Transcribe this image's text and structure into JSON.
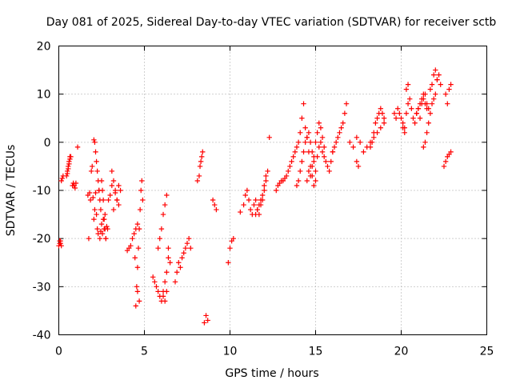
{
  "chart_data": {
    "type": "scatter",
    "title": "Day 081 of 2025, Sidereal Day-to-day VTEC variation (SDTVAR) for receiver sctb",
    "xlabel": "GPS time / hours",
    "ylabel": "SDTVAR / TECUs",
    "xlim": [
      0,
      25
    ],
    "ylim": [
      -40,
      20
    ],
    "xticks": [
      "0",
      "5",
      "10",
      "15",
      "20",
      "25"
    ],
    "yticks": [
      "-40",
      "-30",
      "-20",
      "-10",
      "0",
      "10",
      "20"
    ],
    "xtick_values": [
      0,
      5,
      10,
      15,
      20,
      25
    ],
    "ytick_values": [
      -40,
      -30,
      -20,
      -10,
      0,
      10,
      20
    ],
    "grid": true,
    "marker": "+",
    "color": "#ff0000",
    "series": [
      {
        "name": "SDTVAR",
        "x": [
          0.0,
          0.05,
          0.1,
          0.15,
          0.2,
          0.25,
          0.05,
          0.1,
          0.15,
          0.45,
          0.5,
          0.55,
          0.6,
          0.65,
          0.5,
          0.55,
          0.6,
          0.65,
          0.7,
          0.8,
          0.85,
          0.9,
          0.95,
          1.0,
          1.1,
          1.7,
          1.75,
          1.8,
          1.85,
          1.9,
          1.95,
          2.0,
          2.05,
          2.1,
          2.15,
          2.2,
          2.25,
          2.3,
          2.35,
          2.4,
          2.45,
          2.5,
          2.55,
          2.6,
          2.65,
          2.7,
          2.75,
          2.8,
          2.85,
          2.9,
          2.05,
          2.1,
          2.15,
          2.2,
          2.25,
          2.3,
          2.35,
          2.4,
          2.45,
          2.5,
          2.55,
          2.6,
          2.65,
          2.7,
          2.75,
          3.0,
          3.1,
          3.2,
          3.3,
          3.4,
          3.5,
          3.6,
          3.1,
          3.2,
          3.3,
          3.4,
          3.5,
          4.0,
          4.1,
          4.2,
          4.3,
          4.4,
          4.5,
          4.6,
          4.45,
          4.5,
          4.55,
          4.6,
          4.65,
          4.7,
          4.75,
          4.8,
          4.85,
          4.9,
          4.6,
          4.7,
          5.5,
          5.6,
          5.7,
          5.8,
          5.9,
          6.0,
          6.1,
          6.2,
          6.3,
          6.4,
          5.8,
          5.9,
          6.0,
          6.1,
          6.2,
          6.3,
          6.4,
          6.5,
          6.1,
          6.2,
          6.3,
          6.8,
          6.9,
          7.0,
          7.1,
          7.2,
          7.3,
          7.4,
          7.5,
          7.6,
          7.7,
          8.1,
          8.2,
          8.25,
          8.3,
          8.35,
          8.4,
          8.5,
          8.6,
          8.7,
          9.0,
          9.1,
          9.2,
          9.9,
          10.0,
          10.1,
          10.2,
          10.6,
          10.8,
          10.9,
          11.0,
          11.1,
          11.2,
          11.3,
          11.4,
          11.5,
          11.6,
          11.7,
          11.8,
          11.9,
          12.0,
          12.1,
          12.2,
          12.3,
          11.5,
          11.6,
          11.7,
          11.8,
          11.9,
          12.0,
          12.1,
          12.7,
          12.8,
          12.9,
          13.0,
          13.1,
          13.2,
          13.3,
          13.4,
          13.5,
          13.6,
          13.7,
          13.8,
          13.9,
          14.0,
          14.1,
          14.2,
          14.3,
          14.4,
          14.5,
          14.6,
          14.7,
          14.8,
          14.9,
          15.0,
          13.9,
          14.0,
          14.1,
          14.2,
          14.3,
          14.4,
          14.5,
          14.6,
          14.7,
          14.8,
          14.9,
          15.0,
          15.1,
          15.2,
          15.3,
          15.4,
          15.5,
          15.6,
          15.7,
          15.8,
          15.9,
          16.0,
          14.5,
          14.6,
          14.7,
          14.8,
          14.9,
          15.0,
          15.1,
          15.2,
          15.3,
          15.4,
          15.5,
          16.0,
          16.1,
          16.2,
          16.3,
          16.4,
          16.5,
          16.6,
          16.7,
          16.8,
          17.0,
          17.2,
          17.4,
          17.6,
          17.8,
          18.0,
          18.2,
          18.4,
          18.6,
          18.8,
          19.0,
          17.4,
          17.5,
          18.2,
          18.3,
          18.4,
          18.5,
          18.6,
          18.7,
          18.8,
          18.9,
          19.0,
          19.6,
          19.7,
          19.8,
          19.9,
          20.0,
          20.1,
          20.2,
          20.3,
          20.4,
          20.5,
          20.6,
          20.7,
          20.8,
          20.9,
          21.0,
          21.1,
          21.2,
          21.3,
          21.4,
          21.5,
          20.1,
          20.2,
          20.3,
          20.4,
          20.9,
          21.0,
          21.1,
          21.2,
          21.3,
          21.4,
          21.5,
          21.6,
          21.7,
          21.8,
          21.9,
          22.0,
          22.1,
          21.3,
          21.4,
          21.5,
          21.6,
          21.7,
          21.8,
          21.9,
          22.0,
          22.1,
          22.2,
          22.3,
          22.5,
          22.6,
          22.7,
          22.8,
          22.9,
          22.6,
          22.7,
          22.8,
          22.9
        ],
        "y": [
          -21.5,
          -21,
          -20.5,
          -8,
          -7.5,
          -7,
          -20.5,
          -21,
          -21.5,
          -7,
          -6,
          -5,
          -4,
          -3,
          -6.5,
          -5.5,
          -4.5,
          -3.5,
          -3,
          -9,
          -8.5,
          -9,
          -9.5,
          -8.5,
          -1,
          -11,
          -20,
          -10.5,
          -12,
          -6,
          -5,
          -11.5,
          -16,
          -14,
          -10.5,
          -15,
          -18,
          -19,
          -10,
          -20,
          -18.5,
          -17,
          -19,
          -16,
          -18,
          -15,
          -20,
          -17.5,
          -18,
          -12,
          0.5,
          0,
          -2,
          -4,
          -6,
          -8,
          -10,
          -12,
          -14,
          -8,
          -10,
          -12,
          -16,
          -18,
          -20,
          -11,
          -9,
          -14,
          -10.5,
          -12,
          -13,
          -10,
          -6,
          -8,
          -10,
          -12,
          -9,
          -22.5,
          -22,
          -21.5,
          -20,
          -19,
          -18,
          -17,
          -24,
          -34,
          -30,
          -26,
          -22,
          -18,
          -14,
          -10,
          -8,
          -12,
          -31,
          -33,
          -28,
          -29,
          -30,
          -31,
          -32,
          -33,
          -31,
          -29,
          -27,
          -24,
          -22,
          -20,
          -18,
          -15,
          -13,
          -11,
          -22,
          -25,
          -32,
          -33,
          -31,
          -29,
          -27,
          -25,
          -26,
          -24,
          -23,
          -22,
          -21,
          -20,
          -22,
          -8,
          -7,
          -5,
          -4,
          -3,
          -2,
          -37.5,
          -36,
          -37,
          -12,
          -13,
          -14,
          -25,
          -22,
          -20.5,
          -20,
          -14.5,
          -13,
          -11,
          -10,
          -12,
          -14,
          -15,
          -13,
          -12,
          -14,
          -15,
          -13,
          -12,
          -10,
          -8,
          -6,
          1,
          -15,
          -14,
          -13,
          -12,
          -11,
          -9,
          -7,
          -10,
          -9,
          -8.5,
          -8,
          -8,
          -7.5,
          -7,
          -6,
          -5,
          -4,
          -3,
          -2,
          -1,
          0,
          2,
          5,
          8,
          3,
          1,
          -2,
          -5,
          -7,
          -9,
          -8,
          -9,
          -8,
          -6,
          -4,
          -2,
          0,
          1,
          2,
          0,
          -2,
          -4,
          -6,
          -3,
          -1,
          0,
          -2,
          -3,
          -4,
          -5,
          -6,
          -4,
          -2,
          -8,
          -6,
          -7,
          -5,
          -3,
          0,
          2,
          4,
          3,
          1,
          -1,
          -2,
          -1,
          0,
          1,
          2,
          3,
          4,
          6,
          8,
          0,
          -1,
          1,
          0,
          -2,
          -1,
          0,
          1,
          2,
          3,
          4,
          -4,
          -5,
          -1,
          0,
          2,
          4,
          5,
          6,
          7,
          6,
          5,
          6,
          5,
          7,
          6,
          5,
          4,
          3,
          6,
          8,
          9,
          7,
          5,
          4,
          6,
          7,
          8,
          9,
          10,
          8,
          7,
          3,
          2,
          11,
          12,
          6,
          7,
          5,
          8,
          9,
          10,
          8,
          7,
          11,
          12,
          14,
          15,
          13,
          -1,
          0,
          2,
          4,
          6,
          8,
          9,
          10,
          13,
          14,
          12,
          -5,
          -4,
          -3,
          -2.5,
          -2,
          10,
          8,
          11,
          12
        ]
      }
    ]
  }
}
